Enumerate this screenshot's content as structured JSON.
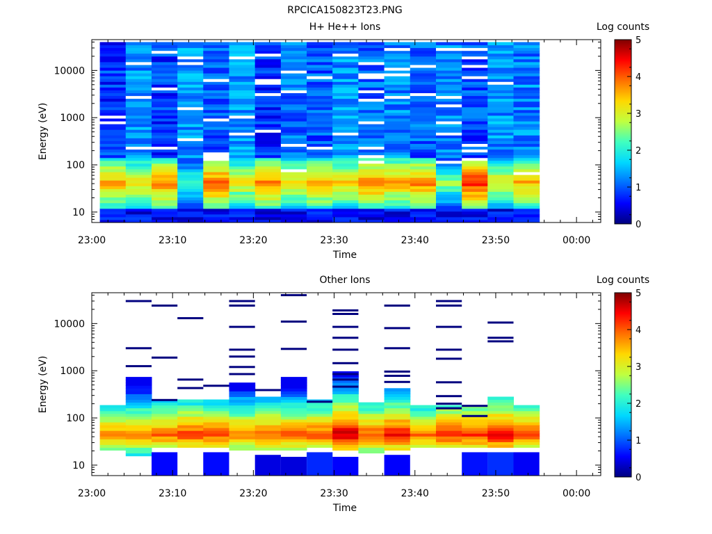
{
  "figure_title": "RPCICA150823T23.PNG",
  "colorbar": {
    "stops": [
      "#00007f",
      "#0000ff",
      "#0070ff",
      "#00d8ff",
      "#40ffbf",
      "#bfff40",
      "#ffd800",
      "#ff7000",
      "#ff0000",
      "#7f0000"
    ]
  },
  "chart_data": [
    {
      "type": "heatmap",
      "title": "H+ He++ Ions",
      "xlabel": "Time",
      "ylabel": "Energy (eV)",
      "x_ticks": [
        "23:00",
        "23:10",
        "23:20",
        "23:30",
        "23:40",
        "23:50",
        "00:00"
      ],
      "x_range_minutes": [
        0,
        63
      ],
      "y_scale": "log",
      "y_ticks": [
        "10",
        "100",
        "1000",
        "10000"
      ],
      "y_range": [
        6,
        45000
      ],
      "colorbar_title": "Log counts",
      "colorbar_ticks": [
        "0",
        "1",
        "2",
        "3",
        "4",
        "5"
      ],
      "colorbar_range": [
        0,
        5
      ],
      "time_bins_start_min": [
        1,
        4.2,
        7.4,
        10.6,
        13.8,
        17,
        20.2,
        23.4,
        26.6,
        29.8,
        33,
        36.2,
        39.4,
        42.6,
        45.8,
        49,
        52.2
      ],
      "time_bin_width_min": 3.2,
      "energy_range": [
        6,
        40000
      ],
      "profile_peak_log_counts": [
        3.6,
        3.3,
        3.8,
        2.4,
        4.0,
        3.2,
        3.9,
        3.3,
        3.7,
        3.4,
        3.9,
        3.6,
        3.8,
        2.6,
        4.3,
        3.2,
        3.6
      ],
      "profile_peak_energy_eV": 42,
      "background_log_counts": [
        0.4,
        0.9,
        0.4,
        0.9,
        0.6,
        0.9,
        0.4,
        0.7,
        0.6,
        0.9,
        0.7,
        0.8,
        0.6,
        0.8,
        0.5,
        0.9,
        0.8
      ],
      "empty_energy_bands_present": true
    },
    {
      "type": "heatmap",
      "title": "Other Ions",
      "xlabel": "Time",
      "ylabel": "Energy (eV)",
      "x_ticks": [
        "23:00",
        "23:10",
        "23:20",
        "23:30",
        "23:40",
        "23:50",
        "00:00"
      ],
      "x_range_minutes": [
        0,
        63
      ],
      "y_scale": "log",
      "y_ticks": [
        "10",
        "100",
        "1000",
        "10000"
      ],
      "y_range": [
        6,
        45000
      ],
      "colorbar_title": "Log counts",
      "colorbar_ticks": [
        "0",
        "1",
        "2",
        "3",
        "4",
        "5"
      ],
      "colorbar_range": [
        0,
        5
      ],
      "time_bins_start_min": [
        1,
        4.2,
        7.4,
        10.6,
        13.8,
        17,
        20.2,
        23.4,
        26.6,
        29.8,
        33,
        36.2,
        39.4,
        42.6,
        45.8,
        49,
        52.2
      ],
      "time_bin_width_min": 3.2,
      "profile_peak_log_counts": [
        3.8,
        3.9,
        4.0,
        4.2,
        4.1,
        3.9,
        4.0,
        4.0,
        4.1,
        4.7,
        4.1,
        4.4,
        3.9,
        4.3,
        4.3,
        4.5,
        4.1
      ],
      "profile_peak_energy_eV": 45,
      "profile_top_energy_eV": [
        200,
        700,
        250,
        230,
        260,
        600,
        300,
        700,
        250,
        1000,
        220,
        450,
        200,
        200,
        180,
        300,
        190
      ],
      "profile_bottom_energy_eV": [
        20,
        15,
        25,
        25,
        25,
        20,
        22,
        20,
        25,
        20,
        18,
        22,
        25,
        25,
        25,
        25,
        25
      ],
      "low_energy_patch_bins": [
        2,
        4,
        6,
        7,
        8,
        9,
        11,
        14,
        15,
        16
      ],
      "sparse_high_energy_lines": [
        [],
        [
          30000,
          3000,
          1250
        ],
        [
          24000,
          1900,
          240
        ],
        [
          13000,
          650,
          430
        ],
        [
          480
        ],
        [
          30000,
          24000,
          8500,
          2800,
          2000,
          1200,
          850
        ],
        [
          390
        ],
        [
          40000,
          11000,
          2900
        ],
        [
          220
        ],
        [
          19000,
          16000,
          8500,
          5000,
          2800,
          1450,
          850,
          650,
          460
        ],
        [],
        [
          24000,
          8000,
          3000,
          960,
          780,
          580
        ],
        [],
        [
          30000,
          24000,
          8500,
          2800,
          1800,
          570,
          290,
          200,
          160
        ],
        [
          180,
          110
        ],
        [
          10500,
          5000,
          4200
        ],
        []
      ]
    }
  ]
}
